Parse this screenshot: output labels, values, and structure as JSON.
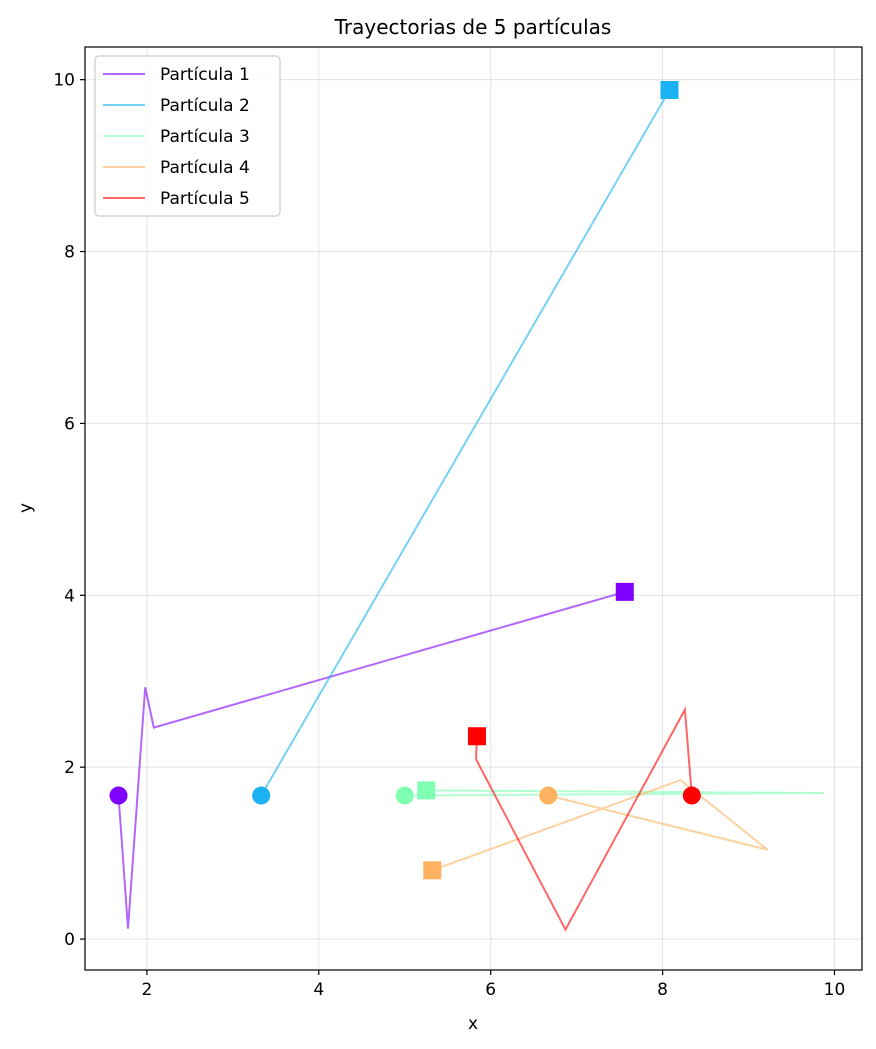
{
  "chart_data": {
    "type": "line",
    "title": "Trayectorias de 5 partículas",
    "xlabel": "x",
    "ylabel": "y",
    "xlim": [
      1.28,
      10.32
    ],
    "ylim": [
      -0.36,
      10.38
    ],
    "xticks": [
      2,
      4,
      6,
      8,
      10
    ],
    "yticks": [
      0,
      2,
      4,
      6,
      8,
      10
    ],
    "grid": true,
    "legend_position": "top-left",
    "series": [
      {
        "name": "Partícula 1",
        "color": "#8000ff",
        "x": [
          1.67,
          1.78,
          1.98,
          2.08,
          7.56
        ],
        "y": [
          1.67,
          0.12,
          2.93,
          2.46,
          4.04
        ]
      },
      {
        "name": "Partícula 2",
        "color": "#1ab2f2",
        "x": [
          3.33,
          8.08
        ],
        "y": [
          1.67,
          9.88
        ]
      },
      {
        "name": "Partícula 3",
        "color": "#80ffb4",
        "x": [
          5.0,
          9.88,
          5.25
        ],
        "y": [
          1.67,
          1.7,
          1.73
        ]
      },
      {
        "name": "Partícula 4",
        "color": "#ffb360",
        "x": [
          6.67,
          9.22,
          8.21,
          5.32
        ],
        "y": [
          1.67,
          1.04,
          1.85,
          0.8
        ]
      },
      {
        "name": "Partícula 5",
        "color": "#ff0000",
        "x": [
          8.34,
          8.26,
          6.87,
          5.83,
          5.84
        ],
        "y": [
          1.67,
          2.67,
          0.11,
          2.09,
          2.36
        ]
      }
    ]
  }
}
